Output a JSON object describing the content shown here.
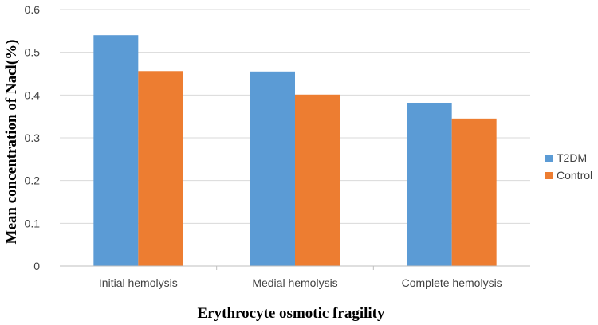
{
  "chart_data": {
    "type": "bar",
    "categories": [
      "Initial hemolysis",
      "Medial hemolysis",
      "Complete hemolysis"
    ],
    "series": [
      {
        "name": "T2DM",
        "values": [
          0.54,
          0.455,
          0.382
        ],
        "color": "#5b9bd5"
      },
      {
        "name": "Control",
        "values": [
          0.456,
          0.401,
          0.345
        ],
        "color": "#ed7d31"
      }
    ],
    "ylim": [
      0,
      0.6
    ],
    "yticks": [
      "0",
      "0.1",
      "0.2",
      "0.3",
      "0.4",
      "0.5",
      "0.6"
    ],
    "ylabel": "Mean concentration of Nacl(%)",
    "xlabel": "Erythrocyte osmotic fragility",
    "grid": "horizontal",
    "legend": "right"
  }
}
